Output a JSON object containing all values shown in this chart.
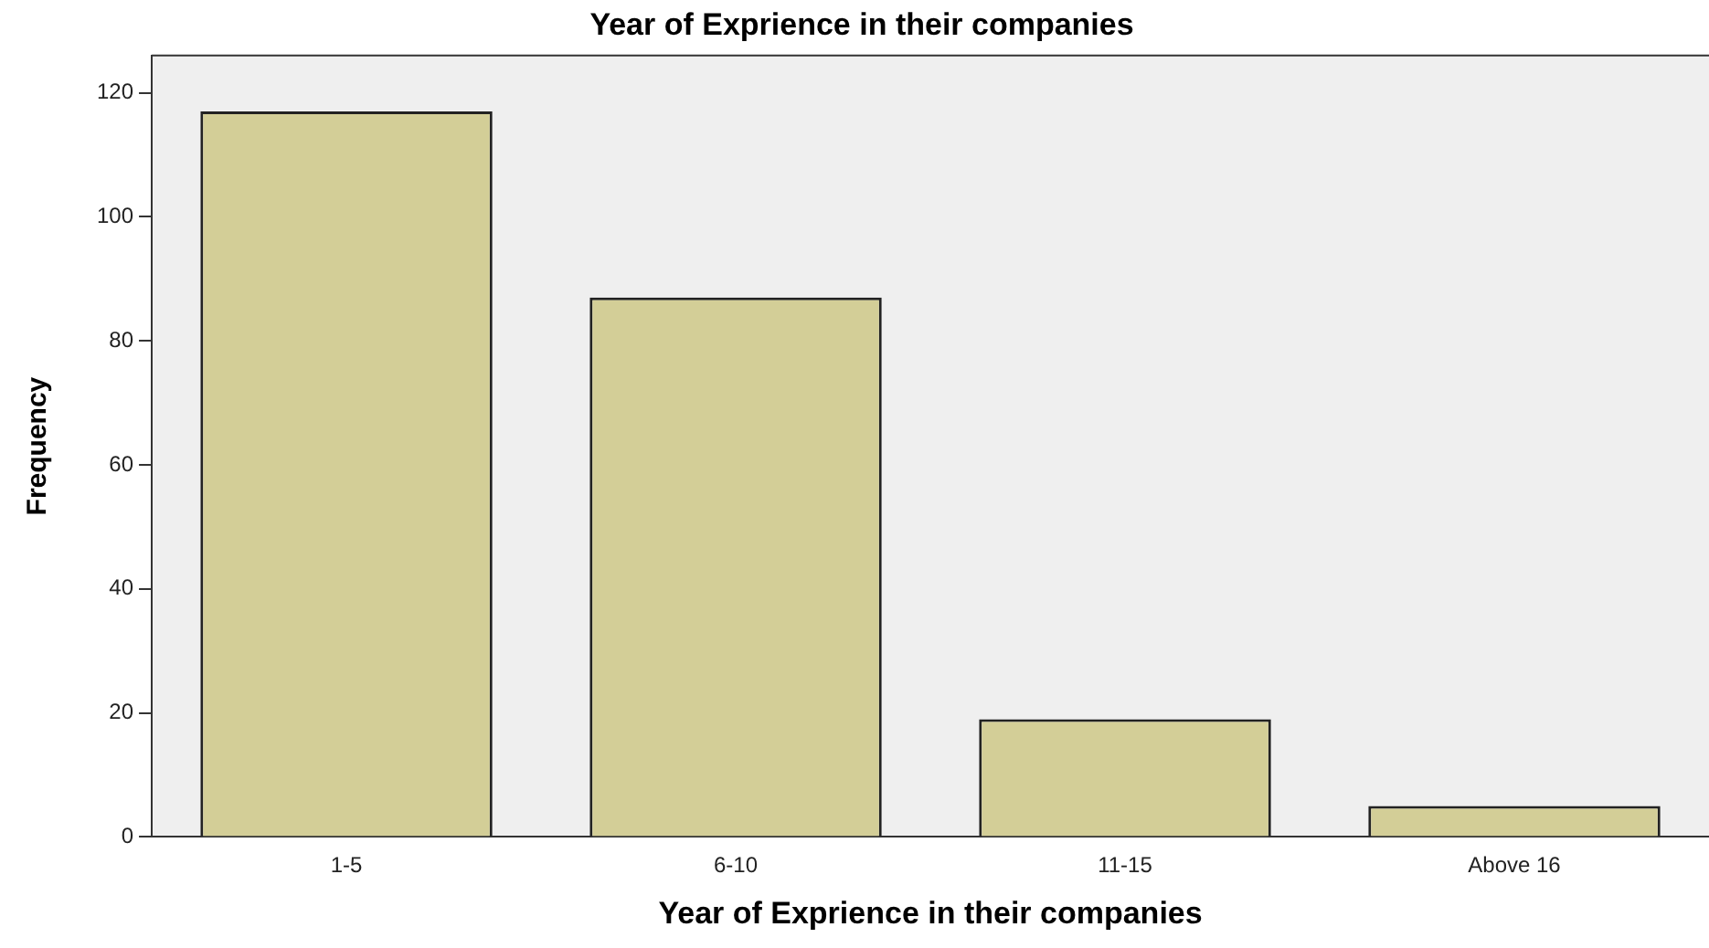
{
  "chart_data": {
    "type": "bar",
    "title": "Year of Exprience in their companies",
    "xlabel": "Year of Exprience in their companies",
    "ylabel": "Frequency",
    "categories": [
      "1-5",
      "6-10",
      "11-15",
      "Above 16"
    ],
    "values": [
      117,
      87,
      19,
      5
    ],
    "color": "#d3ce97",
    "ylim": [
      0,
      126
    ],
    "yticks": [
      0,
      20,
      40,
      60,
      80,
      100,
      120
    ],
    "grid": false,
    "legend": false
  }
}
